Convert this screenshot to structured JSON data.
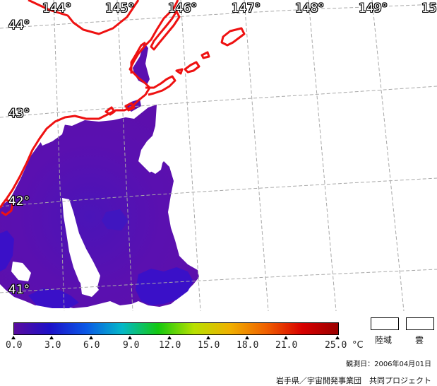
{
  "map": {
    "longitude_labels": [
      "144°",
      "145°",
      "146°",
      "147°",
      "148°",
      "149°",
      "15"
    ],
    "latitude_labels": [
      "44°",
      "43°",
      "42°",
      "41°"
    ],
    "colors": {
      "coastline": "#ee1111",
      "grid": "#a8a8a8",
      "sst_dominant": "#5a10b0",
      "sst_coolest": "#3a10c8"
    }
  },
  "colorbar": {
    "ticks": [
      "0.0",
      "3.0",
      "6.0",
      "9.0",
      "12.0",
      "15.0",
      "18.0",
      "21.0",
      "25.0"
    ],
    "unit": "°C",
    "min": 0.0,
    "max": 25.0,
    "stops": [
      "#5a0c9e",
      "#1c10c8",
      "#0a58e6",
      "#04b8c8",
      "#14c810",
      "#b8e000",
      "#f0b000",
      "#f06000",
      "#d80000",
      "#9a0000"
    ]
  },
  "legend": {
    "land_label": "陸域",
    "cloud_label": "雲"
  },
  "footer": {
    "observation_date": "観測日：2006年04月01日",
    "credit": "岩手県／宇宙開発事業団　共同プロジェクト"
  }
}
